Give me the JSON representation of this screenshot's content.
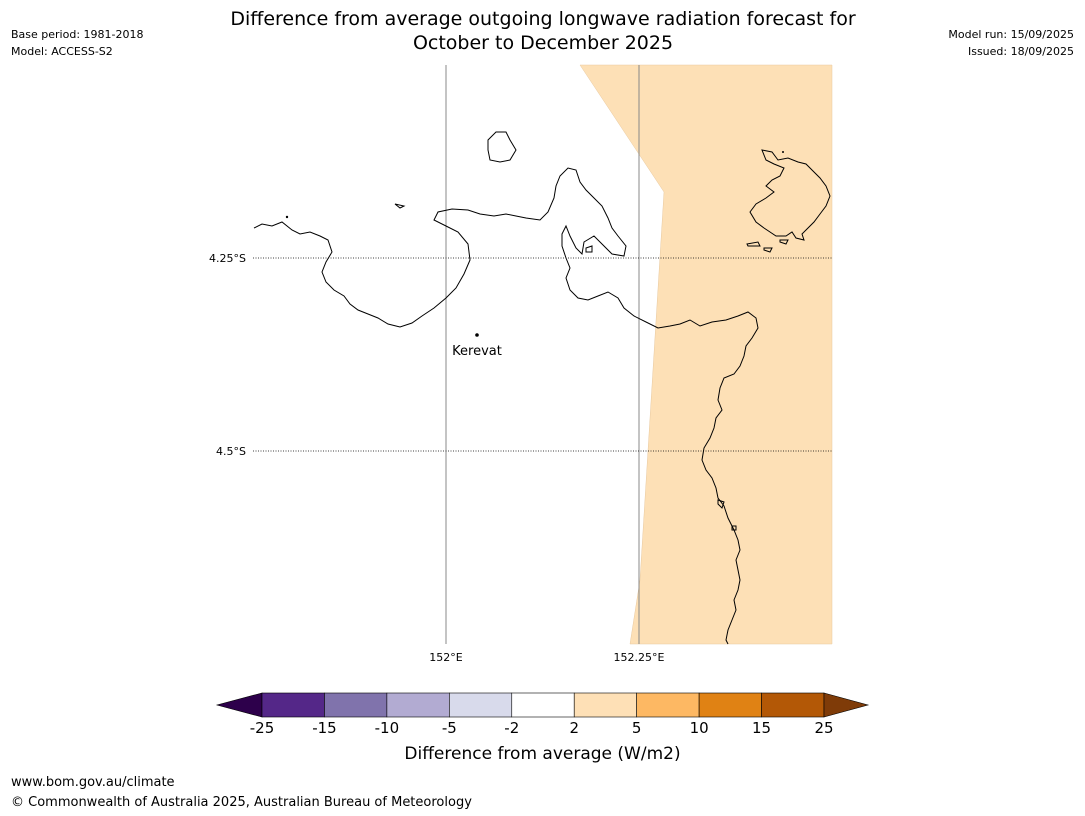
{
  "header": {
    "base_period": "Base period: 1981-2018",
    "model": "Model: ACCESS-S2",
    "model_run": "Model run: 15/09/2025",
    "issued": "Issued: 18/09/2025",
    "title_line1": "Difference from average outgoing longwave radiation forecast for",
    "title_line2": "October to December 2025"
  },
  "map": {
    "lat_labels": [
      "4.25°S",
      "4.5°S"
    ],
    "lon_labels": [
      "152°E",
      "152.25°E"
    ],
    "place": "Kerevat",
    "colors": {
      "positive_2_5": "#fde0b6",
      "coast": "#000000",
      "grid": "#888888"
    }
  },
  "colorbar": {
    "ticks": [
      "-25",
      "-15",
      "-10",
      "-5",
      "-2",
      "2",
      "5",
      "10",
      "15",
      "25"
    ],
    "colors": [
      "#2d004b",
      "#542788",
      "#8073ac",
      "#b2abd2",
      "#d8daeb",
      "#ffffff",
      "#fee0b6",
      "#fdb863",
      "#e08214",
      "#b35806",
      "#7f3b08"
    ],
    "label": "Difference from average (W/m2)"
  },
  "footer": {
    "url": "www.bom.gov.au/climate",
    "copyright": "© Commonwealth of Australia 2025, Australian Bureau of Meteorology"
  }
}
